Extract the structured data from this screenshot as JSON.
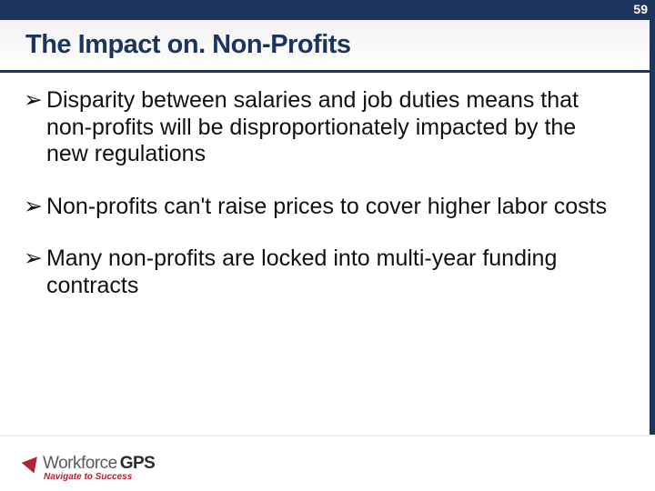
{
  "page_number": "59",
  "title": "The Impact on. Non-Profits",
  "bullets": [
    "Disparity between salaries and job duties means that non-profits will be disproportionately impacted by the new regulations",
    "Non-profits can't raise prices to cover higher labor costs",
    "Many non-profits are locked into multi-year funding contracts"
  ],
  "logo": {
    "brand_a": "Workforce",
    "brand_b": "GPS",
    "tagline": "Navigate to Success"
  },
  "colors": {
    "navy": "#1c355e",
    "red": "#b22234",
    "text": "#111111",
    "bg": "#ffffff"
  }
}
